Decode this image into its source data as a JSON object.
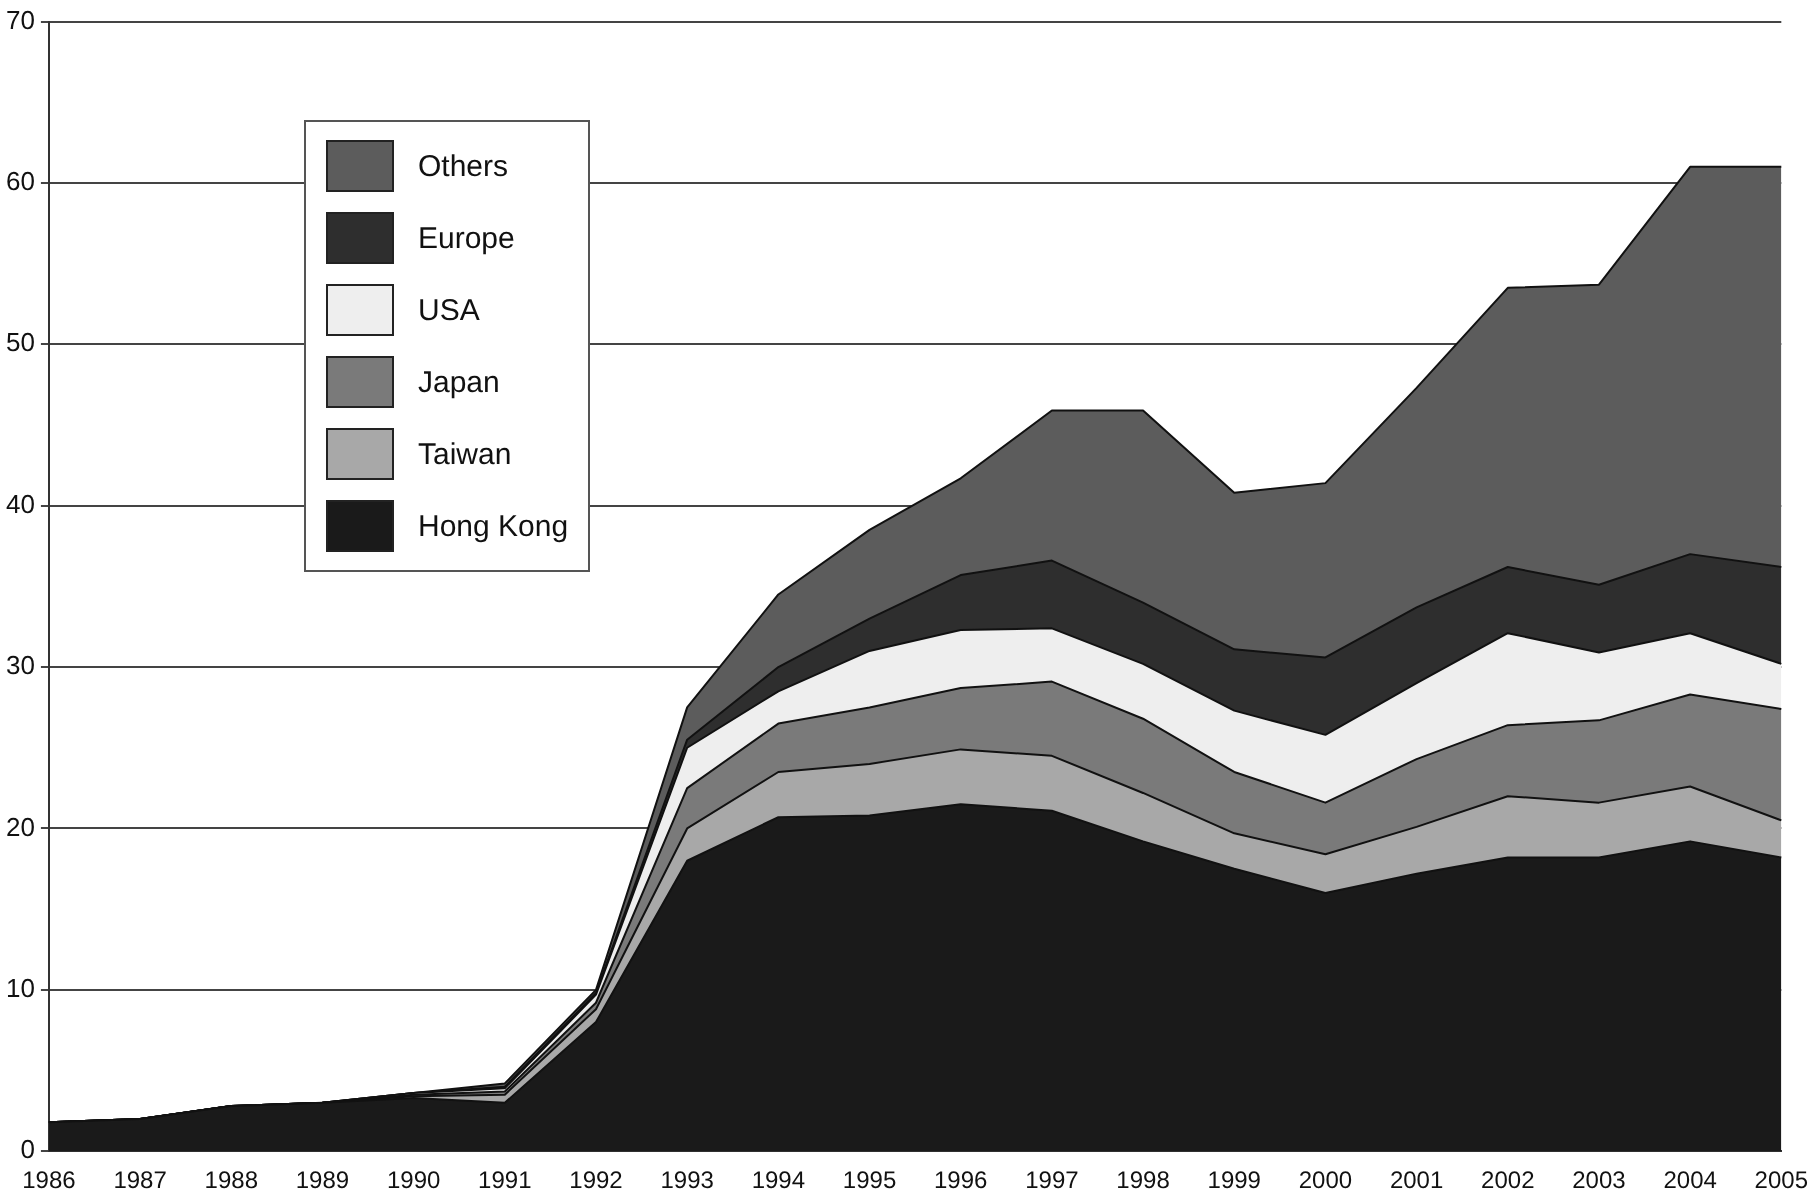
{
  "chart_data": {
    "type": "area",
    "stacked": true,
    "categories": [
      "1986",
      "1987",
      "1988",
      "1989",
      "1990",
      "1991",
      "1992",
      "1993",
      "1994",
      "1995",
      "1996",
      "1997",
      "1998",
      "1999",
      "2000",
      "2001",
      "2002",
      "2003",
      "2004",
      "2005"
    ],
    "series": [
      {
        "name": "Hong Kong",
        "color": "#1a1a1a",
        "values": [
          1.8,
          2.0,
          2.8,
          3.0,
          3.3,
          3.0,
          8.0,
          18.0,
          20.7,
          20.8,
          21.5,
          21.1,
          19.2,
          17.5,
          16.0,
          17.2,
          18.2,
          18.2,
          19.2,
          18.2
        ]
      },
      {
        "name": "Taiwan",
        "color": "#a8a8a8",
        "values": [
          0,
          0,
          0,
          0,
          0.1,
          0.5,
          0.8,
          2.0,
          2.8,
          3.2,
          3.4,
          3.4,
          3.0,
          2.2,
          2.4,
          2.9,
          3.8,
          3.4,
          3.4,
          2.3
        ]
      },
      {
        "name": "Japan",
        "color": "#7a7a7a",
        "values": [
          0,
          0,
          0,
          0,
          0.1,
          0.2,
          0.4,
          2.5,
          3.0,
          3.5,
          3.8,
          4.6,
          4.6,
          3.8,
          3.2,
          4.2,
          4.4,
          5.1,
          5.7,
          6.9
        ]
      },
      {
        "name": "USA",
        "color": "#eeeeee",
        "values": [
          0,
          0,
          0,
          0,
          0.1,
          0.2,
          0.5,
          2.5,
          2.0,
          3.5,
          3.6,
          3.3,
          3.4,
          3.8,
          4.2,
          4.7,
          5.7,
          4.2,
          3.8,
          2.8
        ]
      },
      {
        "name": "Europe",
        "color": "#2e2e2e",
        "values": [
          0,
          0,
          0,
          0,
          0,
          0.1,
          0.1,
          0.5,
          1.5,
          2.0,
          3.4,
          4.2,
          3.8,
          3.8,
          4.8,
          4.7,
          4.1,
          4.2,
          4.9,
          6.0
        ]
      },
      {
        "name": "Others",
        "color": "#5c5c5c",
        "values": [
          0,
          0,
          0,
          0,
          0,
          0.2,
          0.2,
          2.0,
          4.5,
          5.5,
          6.0,
          9.3,
          11.9,
          9.7,
          10.8,
          13.6,
          17.3,
          18.6,
          24.0,
          24.8
        ]
      }
    ],
    "ylim": [
      0,
      70
    ],
    "yticks": [
      0,
      10,
      20,
      30,
      40,
      50,
      60,
      70
    ],
    "grid": "y",
    "legend": "top left"
  }
}
